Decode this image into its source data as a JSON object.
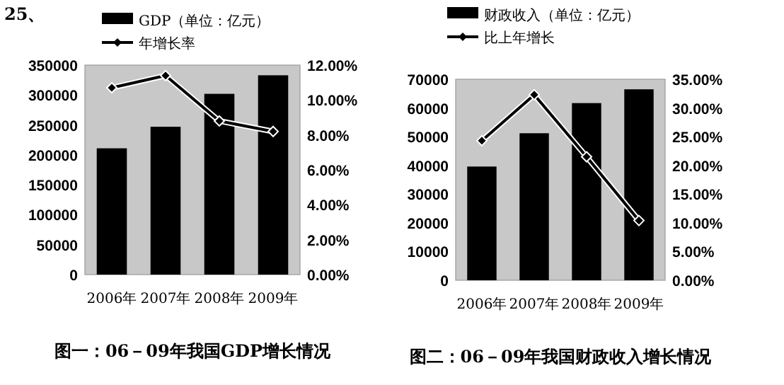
{
  "chart_data": [
    {
      "type": "bar",
      "title": "图一：06－09年我国GDP增长情况",
      "annotations": [
        "25、"
      ],
      "categories": [
        "2006年",
        "2007年",
        "2008年",
        "2009年"
      ],
      "series": [
        {
          "name": "GDP（单位：亿元）",
          "color": "#000000",
          "values": [
            211000,
            247000,
            302000,
            333000
          ]
        },
        {
          "name": "年增长率",
          "type": "line",
          "axis": "y2",
          "color": "#000000",
          "values": [
            10.7,
            11.4,
            8.8,
            8.2
          ]
        }
      ],
      "ylim": [
        0,
        350000
      ],
      "yticks": [
        0,
        50000,
        100000,
        150000,
        200000,
        250000,
        300000,
        350000
      ],
      "y2lim": [
        0,
        12
      ],
      "y2ticks": [
        {
          "value": 0,
          "label": "0.00%"
        },
        {
          "value": 2,
          "label": "2.00%"
        },
        {
          "value": 4,
          "label": "4.00%"
        },
        {
          "value": 6,
          "label": "6.00%"
        },
        {
          "value": 8,
          "label": "8.00%"
        },
        {
          "value": 10,
          "label": "10.00%"
        },
        {
          "value": 12,
          "label": "12.00%"
        }
      ],
      "legend": "top",
      "marker": "diamond",
      "grid": false
    },
    {
      "type": "bar",
      "title": "图二：06－09年我国财政收入增长情况",
      "categories": [
        "2006年",
        "2007年",
        "2008年",
        "2009年"
      ],
      "series": [
        {
          "name": "财政收入（单位：亿元）",
          "color": "#000000",
          "values": [
            39600,
            51200,
            61700,
            66500
          ]
        },
        {
          "name": "比上年增长",
          "type": "line",
          "axis": "y2",
          "color": "#000000",
          "values": [
            24.3,
            32.3,
            21.5,
            10.4
          ]
        }
      ],
      "ylim": [
        0,
        70000
      ],
      "yticks": [
        0,
        10000,
        20000,
        30000,
        40000,
        50000,
        60000,
        70000
      ],
      "y2lim": [
        0,
        35
      ],
      "y2ticks": [
        {
          "value": 0,
          "label": "0.00%"
        },
        {
          "value": 5,
          "label": "5.00%"
        },
        {
          "value": 10,
          "label": "10.00%"
        },
        {
          "value": 15,
          "label": "15.00%"
        },
        {
          "value": 20,
          "label": "20.00%"
        },
        {
          "value": 25,
          "label": "25.00%"
        },
        {
          "value": 30,
          "label": "30.00%"
        },
        {
          "value": 35,
          "label": "35.00%"
        }
      ],
      "legend": "top",
      "marker": "diamond",
      "grid": false
    }
  ]
}
